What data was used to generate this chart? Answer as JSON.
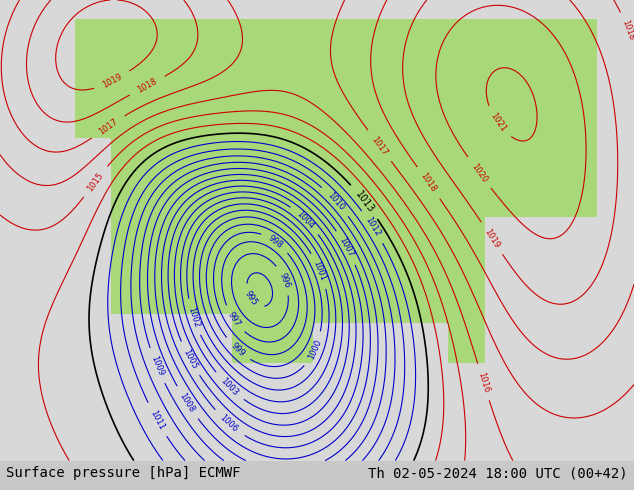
{
  "title_left": "Surface pressure [hPa] ECMWF",
  "title_right": "Th 02-05-2024 18:00 UTC (00+42)",
  "bg_color": "#c8c8c8",
  "land_color_light": "#a8d878",
  "land_color_dark": "#88b858",
  "ocean_color": "#d0d0d0",
  "contour_color_red": "#cc0000",
  "contour_color_blue": "#0000cc",
  "contour_color_black": "#000000",
  "label_fontsize": 10,
  "title_fontsize": 10,
  "figsize": [
    6.34,
    4.9
  ],
  "dpi": 100
}
